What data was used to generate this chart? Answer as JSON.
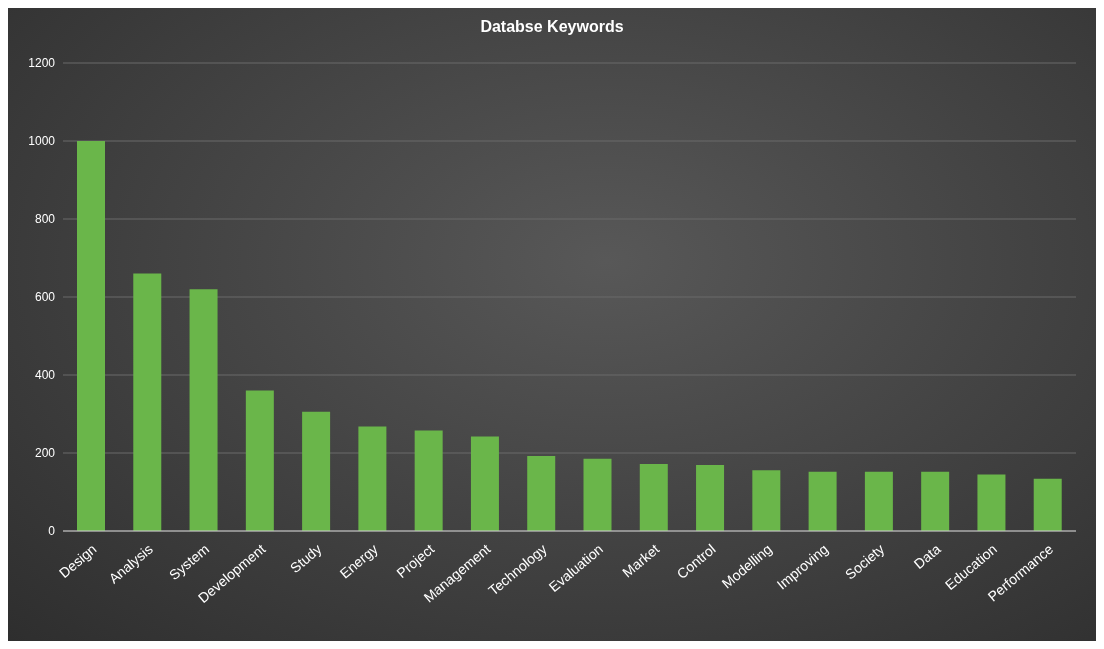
{
  "chart_data": {
    "type": "bar",
    "title": "Databse Keywords",
    "categories": [
      "Design",
      "Analysis",
      "System",
      "Development",
      "Study",
      "Energy",
      "Project",
      "Management",
      "Technology",
      "Evaluation",
      "Market",
      "Control",
      "Modelling",
      "Improving",
      "Society",
      "Data",
      "Education",
      "Performance"
    ],
    "values": [
      1000,
      660,
      620,
      360,
      306,
      268,
      258,
      242,
      192,
      185,
      172,
      169,
      156,
      152,
      152,
      152,
      145,
      134
    ],
    "color": "#6ab64a",
    "ylim": [
      0,
      1200
    ],
    "yticks": [
      0,
      200,
      400,
      600,
      800,
      1000,
      1200
    ],
    "grid": "y"
  }
}
